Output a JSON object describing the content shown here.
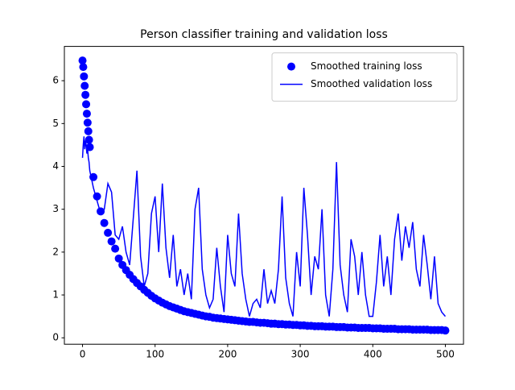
{
  "chart_data": {
    "type": "line",
    "title": "Person classifier training and validation loss",
    "x": [
      0,
      1,
      2,
      3,
      4,
      5,
      6,
      7,
      8,
      9,
      10,
      15,
      20,
      25,
      30,
      35,
      40,
      45,
      50,
      55,
      60,
      65,
      70,
      75,
      80,
      85,
      90,
      95,
      100,
      105,
      110,
      115,
      120,
      125,
      130,
      135,
      140,
      145,
      150,
      155,
      160,
      165,
      170,
      175,
      180,
      185,
      190,
      195,
      200,
      205,
      210,
      215,
      220,
      225,
      230,
      235,
      240,
      245,
      250,
      255,
      260,
      265,
      270,
      275,
      280,
      285,
      290,
      295,
      300,
      305,
      310,
      315,
      320,
      325,
      330,
      335,
      340,
      345,
      350,
      355,
      360,
      365,
      370,
      375,
      380,
      385,
      390,
      395,
      400,
      405,
      410,
      415,
      420,
      425,
      430,
      435,
      440,
      445,
      450,
      455,
      460,
      465,
      470,
      475,
      480,
      485,
      490,
      495,
      500
    ],
    "series": [
      {
        "name": "Smoothed training loss",
        "color": "#0000ff",
        "style": "scatter",
        "values": [
          6.47,
          6.32,
          6.1,
          5.88,
          5.67,
          5.45,
          5.23,
          5.02,
          4.82,
          4.62,
          4.45,
          3.75,
          3.3,
          2.95,
          2.68,
          2.45,
          2.25,
          2.08,
          1.85,
          1.7,
          1.58,
          1.47,
          1.37,
          1.28,
          1.2,
          1.12,
          1.05,
          0.98,
          0.92,
          0.87,
          0.82,
          0.78,
          0.74,
          0.71,
          0.68,
          0.65,
          0.62,
          0.6,
          0.58,
          0.56,
          0.54,
          0.52,
          0.5,
          0.49,
          0.47,
          0.46,
          0.45,
          0.44,
          0.43,
          0.42,
          0.41,
          0.4,
          0.39,
          0.38,
          0.37,
          0.37,
          0.36,
          0.35,
          0.35,
          0.34,
          0.33,
          0.33,
          0.32,
          0.32,
          0.31,
          0.31,
          0.3,
          0.3,
          0.29,
          0.29,
          0.28,
          0.28,
          0.27,
          0.27,
          0.27,
          0.26,
          0.26,
          0.26,
          0.25,
          0.25,
          0.25,
          0.24,
          0.24,
          0.24,
          0.23,
          0.23,
          0.23,
          0.23,
          0.22,
          0.22,
          0.22,
          0.21,
          0.21,
          0.21,
          0.21,
          0.2,
          0.2,
          0.2,
          0.2,
          0.19,
          0.19,
          0.19,
          0.19,
          0.19,
          0.18,
          0.18,
          0.18,
          0.18,
          0.17
        ]
      },
      {
        "name": "Smoothed validation loss",
        "color": "#0000ff",
        "style": "line",
        "values": [
          4.2,
          4.5,
          4.7,
          4.4,
          4.6,
          4.5,
          4.3,
          4.4,
          4.2,
          4.1,
          3.9,
          3.5,
          3.2,
          2.9,
          3.0,
          3.6,
          3.4,
          2.4,
          2.3,
          2.6,
          2.0,
          1.7,
          2.8,
          3.9,
          1.9,
          1.2,
          1.5,
          2.9,
          3.3,
          2.0,
          3.6,
          2.1,
          1.4,
          2.4,
          1.2,
          1.6,
          1.0,
          1.5,
          0.9,
          3.0,
          3.5,
          1.6,
          1.0,
          0.7,
          0.9,
          2.1,
          1.2,
          0.6,
          2.4,
          1.5,
          1.2,
          2.9,
          1.5,
          0.9,
          0.5,
          0.8,
          0.9,
          0.7,
          1.6,
          0.8,
          1.1,
          0.8,
          1.6,
          3.3,
          1.4,
          0.8,
          0.5,
          2.0,
          1.2,
          3.5,
          2.4,
          1.0,
          1.9,
          1.6,
          3.0,
          1.0,
          0.5,
          1.6,
          4.1,
          1.7,
          1.0,
          0.6,
          2.3,
          1.9,
          1.0,
          2.0,
          1.0,
          0.5,
          0.5,
          1.3,
          2.4,
          1.2,
          1.9,
          1.0,
          2.3,
          2.9,
          1.8,
          2.6,
          2.1,
          2.7,
          1.6,
          1.2,
          2.4,
          1.7,
          0.9,
          1.9,
          0.8,
          0.6,
          0.5
        ]
      }
    ],
    "xlim": [
      -25,
      525
    ],
    "xticks": [
      0,
      100,
      200,
      300,
      400,
      500
    ],
    "ylim": [
      -0.15,
      6.8
    ],
    "yticks": [
      0,
      1,
      2,
      3,
      4,
      5,
      6
    ],
    "legend": "upper right"
  }
}
